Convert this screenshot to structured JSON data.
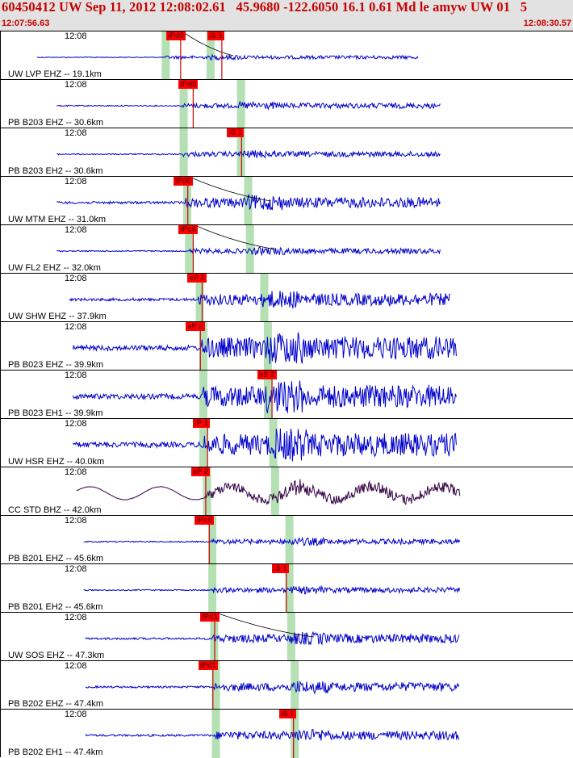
{
  "header": {
    "title": "60450412 UW Sep 11, 2012 12:08:02.61   45.9680 -122.6050 16.1 0.61 Md le amyw UW 01   5",
    "start_time": "12:07:56.63",
    "end_time": "12:08:30.57"
  },
  "colors": {
    "header_bg": "#e2e2e2",
    "header_text": "#c80000",
    "trace": "#0000cc",
    "trace_broadband": "#330044",
    "pick_box": "#ff0000",
    "pick_text": "#7a0000",
    "window_band": "#b4e0b4",
    "pick_line": "#cc0000"
  },
  "traces": [
    {
      "tick_label": "12:08",
      "station": "UW LVP EHZ -- 19.1km",
      "picks": [
        {
          "label": "iPd0",
          "t": 7.2
        },
        {
          "label": "iS 1",
          "t": 9.5
        }
      ],
      "windows": [
        7.0,
        9.5
      ],
      "amp": 2,
      "arrival_t": 7.2,
      "s_t": 9.6,
      "bb": false,
      "start_t": 0.0,
      "end_t": 21.3,
      "curve": true
    },
    {
      "tick_label": "12:08",
      "station": "PB B203 EHZ -- 30.6km",
      "picks": [
        {
          "label": "iPd0",
          "t": 7.9
        }
      ],
      "windows": [
        8.0,
        11.2
      ],
      "amp": 3,
      "arrival_t": 8.1,
      "s_t": 11.3,
      "bb": false,
      "start_t": 1.1,
      "end_t": 22.5,
      "curve": false
    },
    {
      "tick_label": "12:08",
      "station": "PB B203 EH2 -- 30.6km",
      "picks": [
        {
          "label": "iS 1",
          "t": 10.6
        }
      ],
      "windows": [
        8.0,
        11.2
      ],
      "amp": 3,
      "arrival_t": 8.1,
      "s_t": 11.3,
      "bb": false,
      "start_t": 1.1,
      "end_t": 22.5,
      "curve": false
    },
    {
      "tick_label": "12:08",
      "station": "UW MTM EHZ -- 31.0km",
      "picks": [
        {
          "label": "iPd0",
          "t": 7.6
        }
      ],
      "windows": [
        8.2,
        11.6
      ],
      "amp": 6,
      "arrival_t": 8.3,
      "s_t": 11.7,
      "bb": false,
      "start_t": 1.1,
      "end_t": 22.5,
      "curve": true
    },
    {
      "tick_label": "12:08",
      "station": "UW FL2 EHZ -- 32.0km",
      "picks": [
        {
          "label": "iPc0",
          "t": 7.9
        }
      ],
      "windows": [
        8.3,
        11.7
      ],
      "amp": 3,
      "arrival_t": 8.5,
      "s_t": 12.0,
      "bb": false,
      "start_t": 1.1,
      "end_t": 22.5,
      "curve": true
    },
    {
      "tick_label": "12:08",
      "station": "UW SHW EHZ -- 37.9km",
      "picks": [
        {
          "label": "eP 2",
          "t": 8.4
        }
      ],
      "windows": [
        8.9,
        12.5
      ],
      "amp": 7,
      "arrival_t": 9.0,
      "s_t": 12.6,
      "bb": false,
      "start_t": 1.8,
      "end_t": 23.1,
      "curve": false
    },
    {
      "tick_label": "12:08",
      "station": "PB B023 EHZ -- 39.9km",
      "picks": [
        {
          "label": "eP 2",
          "t": 8.3
        }
      ],
      "windows": [
        9.1,
        12.7
      ],
      "amp": 13,
      "arrival_t": 9.2,
      "s_t": 12.8,
      "bb": false,
      "start_t": 2.0,
      "end_t": 23.4,
      "curve": false
    },
    {
      "tick_label": "12:08",
      "station": "PB B023 EH1 -- 39.9km",
      "picks": [
        {
          "label": "eS 2",
          "t": 12.3
        }
      ],
      "windows": [
        9.1,
        12.7
      ],
      "amp": 13,
      "arrival_t": 9.2,
      "s_t": 12.8,
      "bb": false,
      "start_t": 2.0,
      "end_t": 23.4,
      "curve": false
    },
    {
      "tick_label": "12:08",
      "station": "UW HSR EHZ -- 40.0km",
      "picks": [
        {
          "label": "iP 1",
          "t": 8.7
        }
      ],
      "windows": [
        9.1,
        13.0
      ],
      "amp": 13,
      "arrival_t": 9.2,
      "s_t": 13.1,
      "bb": false,
      "start_t": 2.0,
      "end_t": 23.4,
      "curve": false
    },
    {
      "tick_label": "12:08",
      "station": "CC STD BHZ -- 42.0km",
      "picks": [
        {
          "label": "eP 2",
          "t": 8.6
        }
      ],
      "windows": [
        9.3,
        13.1
      ],
      "amp": 6,
      "arrival_t": 9.4,
      "s_t": 13.2,
      "bb": true,
      "start_t": 2.2,
      "end_t": 23.6,
      "curve": false
    },
    {
      "tick_label": "12:08",
      "station": "PB B201 EHZ -- 45.6km",
      "picks": [
        {
          "label": "iPc0",
          "t": 8.8
        }
      ],
      "windows": [
        9.6,
        13.9
      ],
      "amp": 3,
      "arrival_t": 9.7,
      "s_t": 14.0,
      "bb": false,
      "start_t": 2.6,
      "end_t": 23.6,
      "curve": false
    },
    {
      "tick_label": "12:08",
      "station": "PB B201 EH2 -- 45.6km",
      "picks": [
        {
          "label": "iS 1",
          "t": 13.1
        }
      ],
      "windows": [
        9.6,
        13.9
      ],
      "amp": 3,
      "arrival_t": 9.7,
      "s_t": 14.0,
      "bb": false,
      "start_t": 2.6,
      "end_t": 23.6,
      "curve": false
    },
    {
      "tick_label": "12:08",
      "station": "UW SOS EHZ -- 47.3km",
      "picks": [
        {
          "label": "iPd1",
          "t": 9.1
        }
      ],
      "windows": [
        9.7,
        14.0
      ],
      "amp": 5,
      "arrival_t": 9.8,
      "s_t": 14.1,
      "bb": false,
      "start_t": 2.7,
      "end_t": 23.6,
      "curve": true
    },
    {
      "tick_label": "12:08",
      "station": "PB B202 EHZ -- 47.4km",
      "picks": [
        {
          "label": "iPd1",
          "t": 9.0
        }
      ],
      "windows": [
        9.8,
        14.2
      ],
      "amp": 5,
      "arrival_t": 9.9,
      "s_t": 14.3,
      "bb": false,
      "start_t": 2.7,
      "end_t": 23.6,
      "curve": false
    },
    {
      "tick_label": "12:08",
      "station": "PB B202 EH1 -- 47.4km",
      "picks": [
        {
          "label": "iS 1",
          "t": 13.5
        }
      ],
      "windows": [
        9.8,
        14.2
      ],
      "amp": 5,
      "arrival_t": 9.9,
      "s_t": 14.3,
      "bb": false,
      "start_t": 2.7,
      "end_t": 23.6,
      "curve": false
    }
  ]
}
